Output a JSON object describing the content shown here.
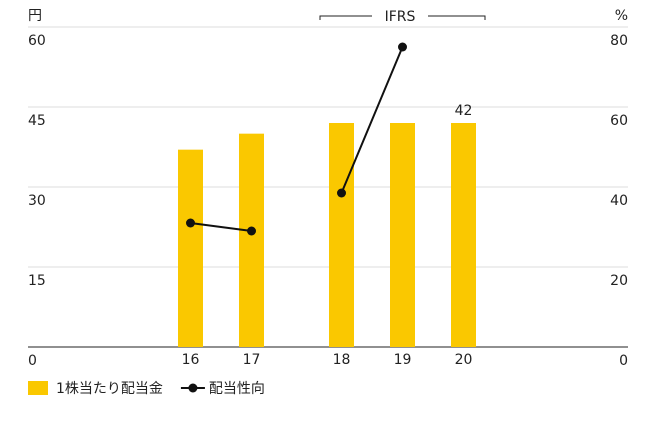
{
  "chart_data": {
    "type": "bar_line",
    "y_unit": "円",
    "y2_unit": "%",
    "annotation": "IFRS",
    "categories": [
      "16",
      "17",
      null,
      "18",
      "19",
      "20"
    ],
    "series": [
      {
        "name": "1株当たり配当金",
        "type": "bar",
        "color": "#fac800",
        "values": [
          37,
          40,
          null,
          42,
          42,
          42
        ],
        "value_labels": [
          null,
          null,
          null,
          null,
          null,
          "42"
        ]
      },
      {
        "name": "配当性向",
        "type": "line",
        "axis": "y2",
        "color": "#111111",
        "values": [
          31,
          29,
          null,
          38.5,
          75,
          null
        ]
      }
    ],
    "ylim": [
      0,
      60
    ],
    "yticks": [
      0,
      15,
      30,
      45,
      60
    ],
    "y2lim": [
      0,
      80
    ],
    "y2ticks": [
      0,
      20,
      40,
      60,
      80
    ],
    "grid": true
  }
}
